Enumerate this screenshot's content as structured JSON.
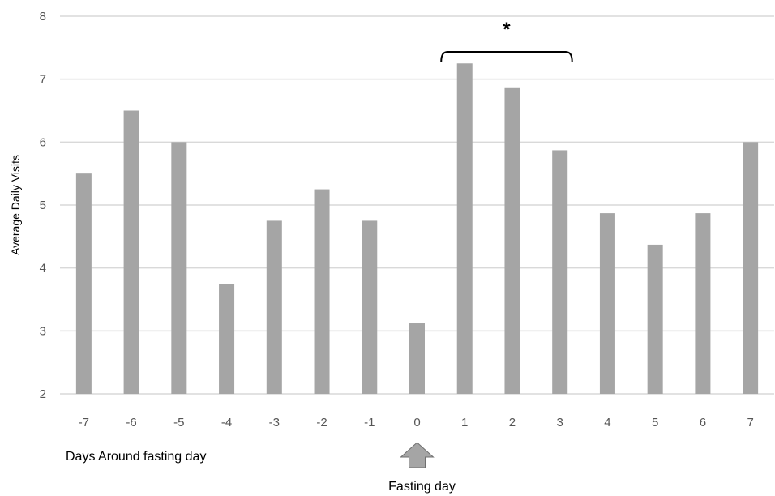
{
  "chart_data": {
    "type": "bar",
    "categories": [
      "-7",
      "-6",
      "-5",
      "-4",
      "-3",
      "-2",
      "-1",
      "0",
      "1",
      "2",
      "3",
      "4",
      "5",
      "6",
      "7"
    ],
    "values": [
      5.5,
      6.5,
      6.0,
      3.75,
      4.75,
      5.25,
      4.75,
      3.12,
      7.25,
      6.87,
      5.87,
      4.87,
      4.37,
      4.87,
      6.0
    ],
    "title": "",
    "xlabel": "Days Around fasting day",
    "ylabel": "Average  Daily Visits",
    "ylim": [
      2,
      8
    ],
    "yticks": [
      "2",
      "3",
      "4",
      "5",
      "6",
      "7",
      "8"
    ],
    "grid": true,
    "bar_color": "#a5a5a5",
    "grid_color": "#d9d9d9",
    "annotations": {
      "significance_marker": "*",
      "significance_span": [
        "1",
        "3"
      ],
      "arrow_label": "Fasting day",
      "arrow_category": "0",
      "arrow_color": "#a5a5a5"
    }
  }
}
